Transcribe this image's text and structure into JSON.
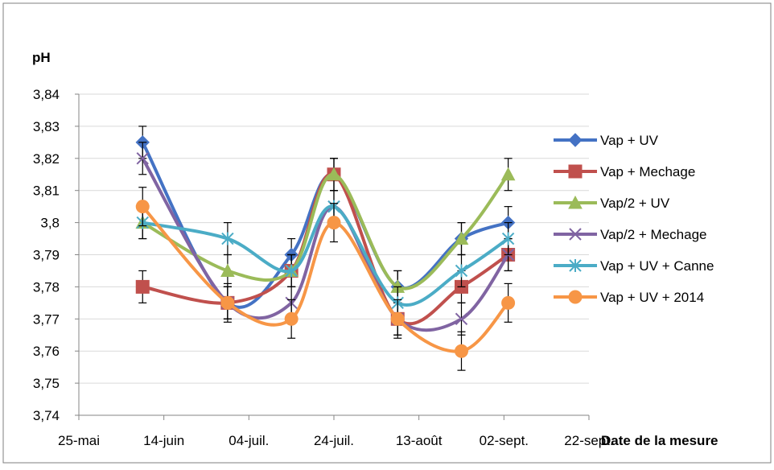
{
  "chart_data": {
    "type": "line",
    "smooth": true,
    "title": "",
    "ylabel": "pH",
    "xlabel": "Date de la mesure",
    "ylim": [
      3.74,
      3.84
    ],
    "ytick_step": 0.01,
    "yticks": [
      "3,74",
      "3,75",
      "3,76",
      "3,77",
      "3,78",
      "3,79",
      "3,8",
      "3,81",
      "3,82",
      "3,83",
      "3,84"
    ],
    "xlim": [
      "2014-05-25",
      "2014-09-22"
    ],
    "xticks": [
      {
        "date": "2014-05-25",
        "label": "25-mai"
      },
      {
        "date": "2014-06-14",
        "label": "14-juin"
      },
      {
        "date": "2014-07-04",
        "label": "04-juil."
      },
      {
        "date": "2014-07-24",
        "label": "24-juil."
      },
      {
        "date": "2014-08-13",
        "label": "13-août"
      },
      {
        "date": "2014-09-02",
        "label": "02-sept."
      },
      {
        "date": "2014-09-22",
        "label": "22-sept."
      }
    ],
    "grid": "horizontal",
    "legend_position": "right",
    "x": [
      "2014-06-09",
      "2014-06-29",
      "2014-07-14",
      "2014-07-24",
      "2014-08-08",
      "2014-08-23",
      "2014-09-03"
    ],
    "series": [
      {
        "name": "Vap + UV",
        "color": "#4472C4",
        "marker": "diamond",
        "values": [
          3.825,
          3.775,
          3.79,
          3.815,
          3.78,
          3.795,
          3.8
        ],
        "errors": [
          0.005,
          0.005,
          0.005,
          0.005,
          0.005,
          0.005,
          0.005
        ]
      },
      {
        "name": "Vap + Mechage",
        "color": "#C0504D",
        "marker": "square",
        "values": [
          3.78,
          3.775,
          3.785,
          3.815,
          3.77,
          3.78,
          3.79
        ],
        "errors": [
          0.005,
          0.005,
          0.005,
          0.005,
          0.005,
          0.005,
          0.005
        ]
      },
      {
        "name": "Vap/2 + UV",
        "color": "#9BBB59",
        "marker": "triangle",
        "values": [
          3.8,
          3.785,
          3.785,
          3.815,
          3.78,
          3.795,
          3.815
        ],
        "errors": [
          0.005,
          0.005,
          0.005,
          0.005,
          0.005,
          0.005,
          0.005
        ]
      },
      {
        "name": "Vap/2 + Mechage",
        "color": "#8064A2",
        "marker": "x",
        "values": [
          3.82,
          3.775,
          3.775,
          3.805,
          3.77,
          3.77,
          3.79
        ],
        "errors": [
          0.005,
          0.005,
          0.005,
          0.005,
          0.005,
          0.005,
          0.005
        ]
      },
      {
        "name": "Vap + UV + Canne",
        "color": "#4BACC6",
        "marker": "star",
        "values": [
          3.8,
          3.795,
          3.785,
          3.805,
          3.775,
          3.785,
          3.795
        ],
        "errors": [
          0.005,
          0.005,
          0.005,
          0.005,
          0.005,
          0.005,
          0.005
        ]
      },
      {
        "name": "Vap + UV + 2014",
        "color": "#F79646",
        "marker": "circle",
        "values": [
          3.805,
          3.775,
          3.77,
          3.8,
          3.77,
          3.76,
          3.775
        ],
        "errors": [
          0.006,
          0.006,
          0.006,
          0.006,
          0.006,
          0.006,
          0.006
        ]
      }
    ]
  }
}
